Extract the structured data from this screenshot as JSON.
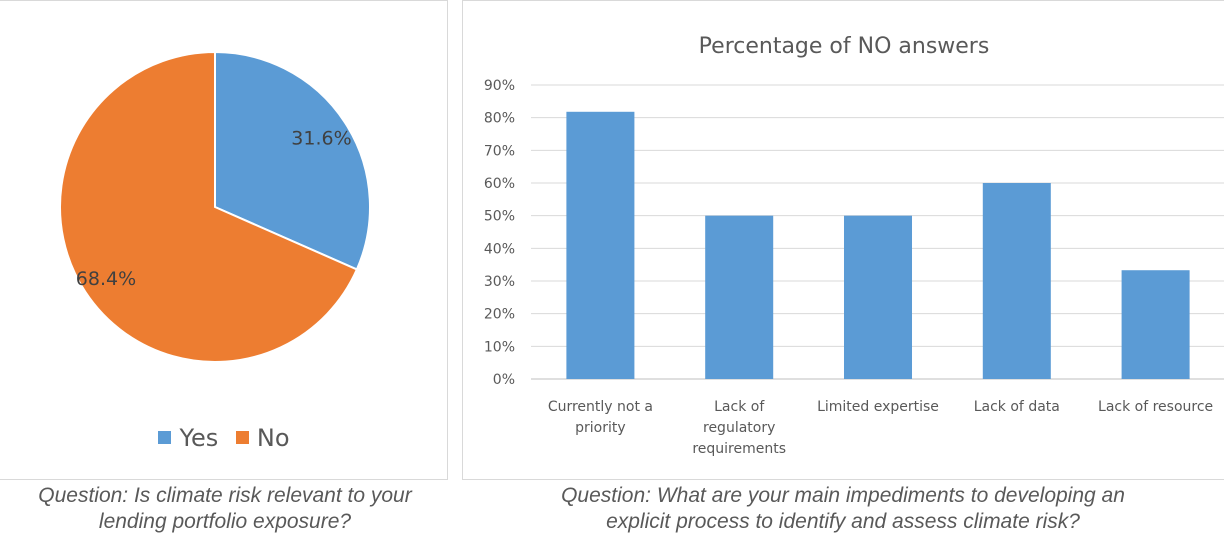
{
  "chart_data": [
    {
      "type": "pie",
      "title": "",
      "categories": [
        "Yes",
        "No"
      ],
      "values": [
        31.6,
        68.4
      ],
      "data_labels": [
        "31.6%",
        "68.4%"
      ],
      "colors": [
        "#5b9bd5",
        "#ed7d31"
      ],
      "legend": "bottom"
    },
    {
      "type": "bar",
      "title": "Percentage of NO answers",
      "categories": [
        [
          "Currently not a",
          "priority"
        ],
        [
          "Lack of",
          "regulatory",
          "requirements"
        ],
        [
          "Limited expertise"
        ],
        [
          "Lack of data"
        ],
        [
          "Lack of resource"
        ]
      ],
      "values": [
        81.8,
        50.0,
        50.0,
        60.0,
        33.3
      ],
      "ylim": [
        0,
        90
      ],
      "yticks": [
        "0%",
        "10%",
        "20%",
        "30%",
        "40%",
        "50%",
        "60%",
        "70%",
        "80%",
        "90%"
      ],
      "grid": true,
      "color": "#5b9bd5"
    }
  ],
  "captions": {
    "pie": [
      "Question: Is climate risk relevant to your",
      "lending portfolio exposure?"
    ],
    "bar": [
      "Question: What are your main impediments to developing an",
      "explicit process to identify and assess climate risk?"
    ]
  }
}
